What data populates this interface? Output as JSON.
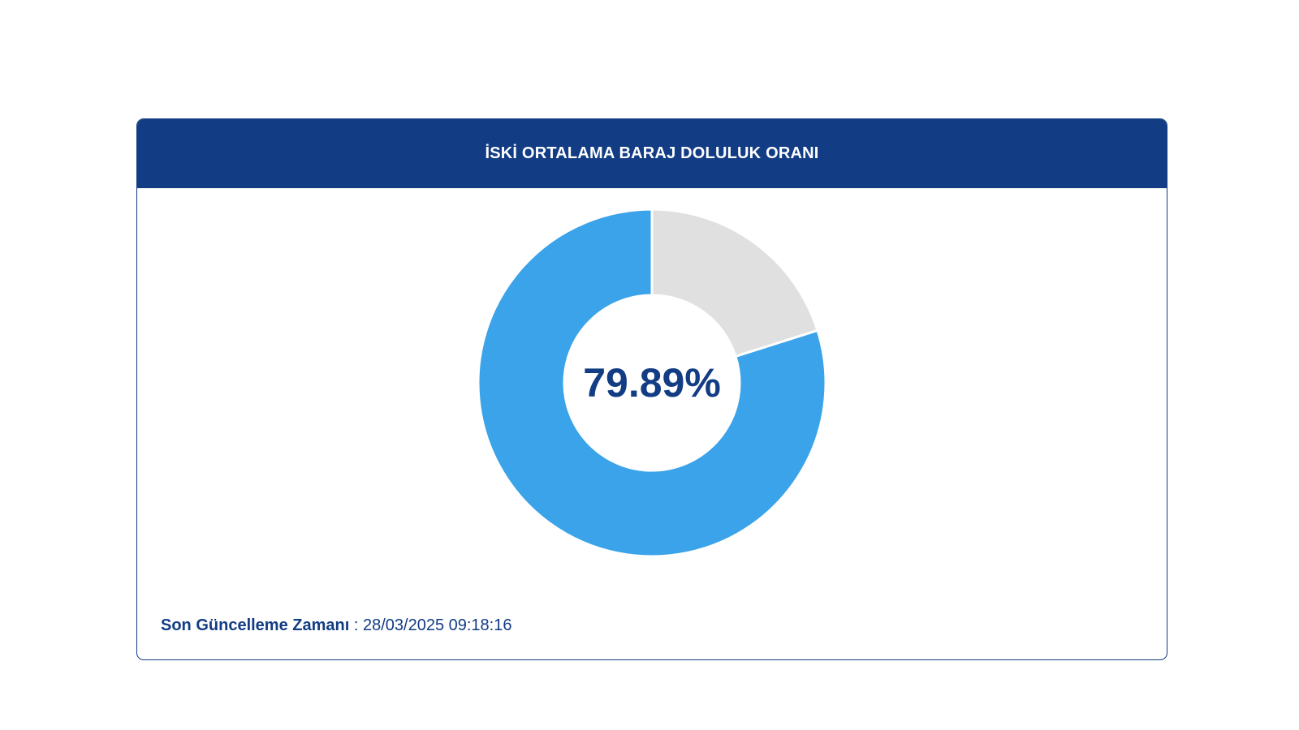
{
  "card": {
    "title": "İSKİ ORTALAMA BARAJ DOLULUK ORANI"
  },
  "chart_data": {
    "type": "pie",
    "center_label": "79.89%",
    "slices": [
      {
        "value": 79.89,
        "color": "#3aa3e9"
      },
      {
        "value": 20.11,
        "color": "#e0e0e0"
      }
    ]
  },
  "footer": {
    "label": "Son Güncelleme Zamanı",
    "separator": " : ",
    "value": "28/03/2025 09:18:16"
  }
}
